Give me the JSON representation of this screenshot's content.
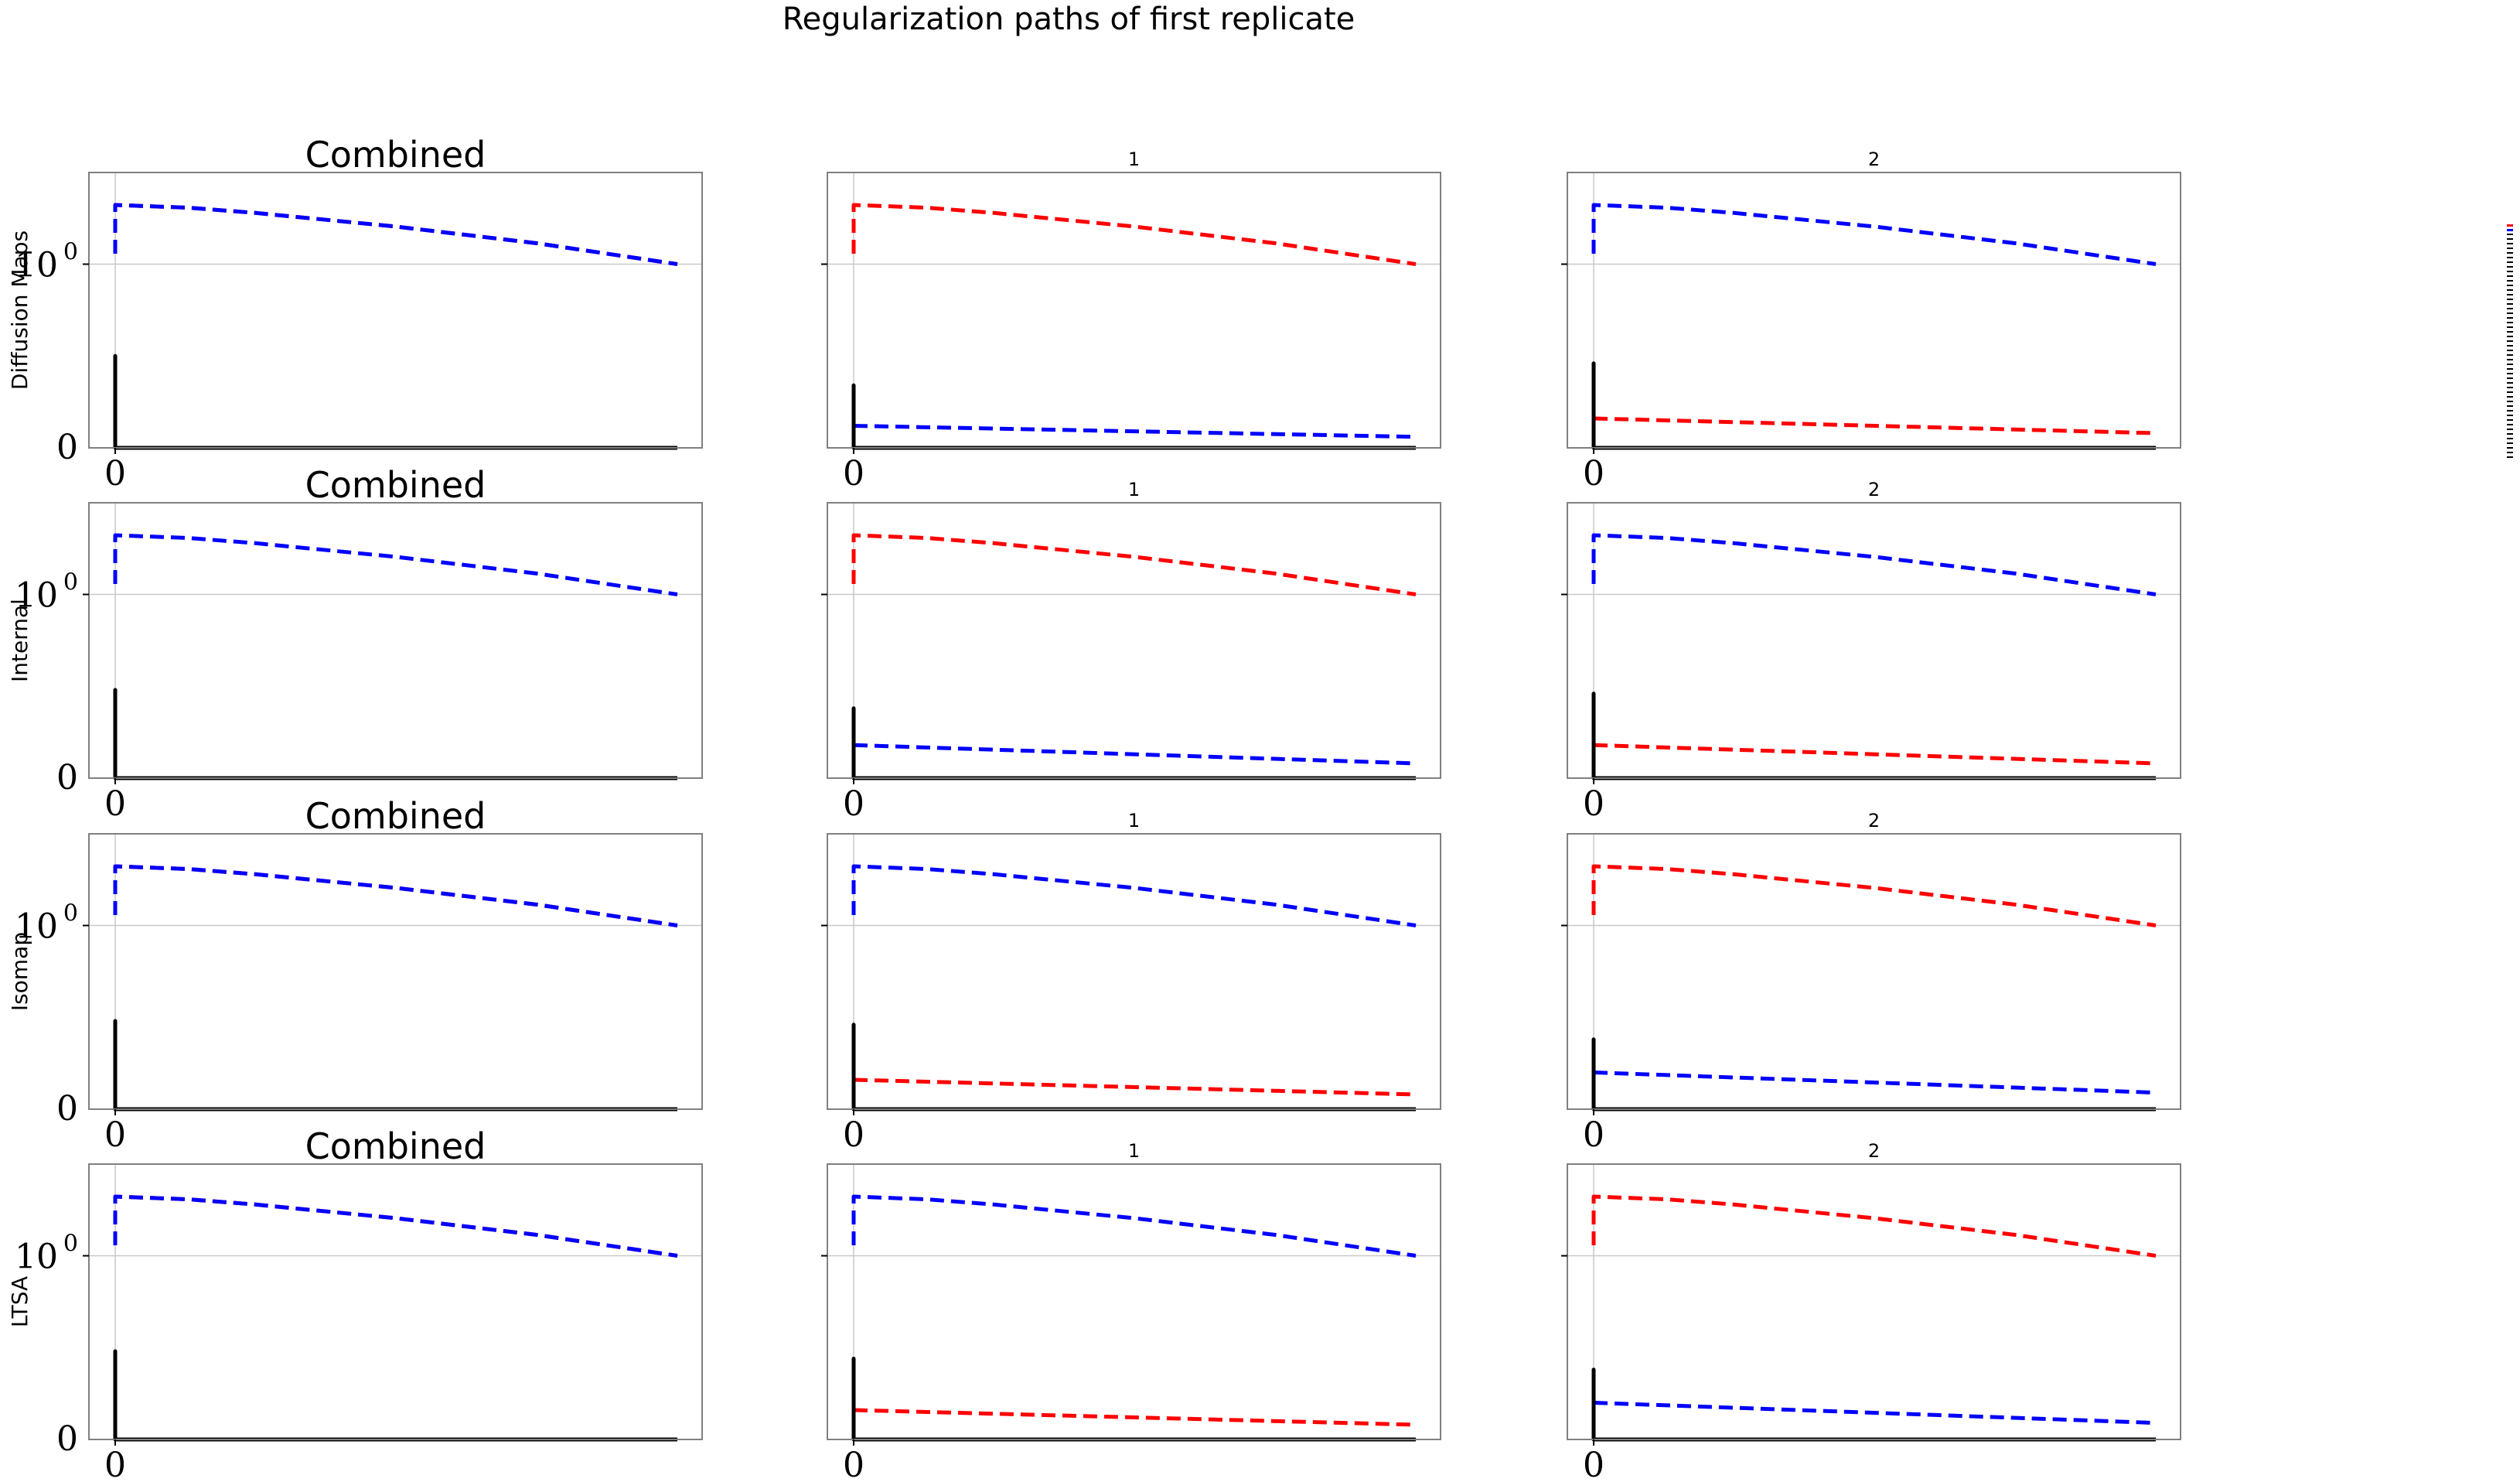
{
  "figure_title": "Regularization paths of first replicate",
  "rows": [
    {
      "label": "Diffusion Maps"
    },
    {
      "label": "Internal"
    },
    {
      "label": "Isomap"
    },
    {
      "label": "LTSA"
    }
  ],
  "columns": [
    {
      "title": "Combined"
    },
    {
      "title": "1"
    },
    {
      "title": "2"
    }
  ],
  "colors": {
    "red": "#ff0000",
    "blue": "#0000ff",
    "black": "#000000",
    "grid": "#c8c8c8",
    "frame": "#808080"
  },
  "chart_data": [
    {
      "type": "line",
      "row": "Diffusion Maps",
      "title": "Combined",
      "ylabel": "Diffusion Maps",
      "xticks": [
        "0"
      ],
      "yticks": [
        "0",
        "10^0"
      ],
      "yscale": "symlog",
      "series": [
        {
          "color": "red",
          "style": "dashed",
          "x": [
            0,
            0,
            0.13,
            0.25,
            0.5,
            0.75,
            1
          ],
          "y": [
            1.14,
            2.1,
            2.03,
            1.9,
            1.6,
            1.3,
            1.0
          ]
        },
        {
          "color": "blue",
          "style": "dashed",
          "x": [
            0,
            0,
            0.13,
            0.25,
            0.5,
            0.75,
            1
          ],
          "y": [
            1.14,
            2.1,
            2.03,
            1.9,
            1.6,
            1.3,
            1.0
          ]
        },
        {
          "color": "black",
          "style": "solid",
          "x": [
            0,
            0,
            0,
            1
          ],
          "y": [
            0,
            0.5,
            0,
            0
          ]
        }
      ]
    },
    {
      "type": "line",
      "row": "Diffusion Maps",
      "title": "1",
      "xticks": [
        "0"
      ],
      "yticks": [],
      "yscale": "symlog",
      "series": [
        {
          "color": "red",
          "style": "dashed",
          "x": [
            0,
            0,
            0.13,
            0.25,
            0.5,
            0.75,
            1
          ],
          "y": [
            1.14,
            2.1,
            2.03,
            1.9,
            1.6,
            1.3,
            1.0
          ]
        },
        {
          "color": "blue",
          "style": "dashed",
          "x": [
            0,
            1
          ],
          "y": [
            0.12,
            0.06
          ]
        },
        {
          "color": "black",
          "style": "solid",
          "x": [
            0,
            0,
            0,
            1
          ],
          "y": [
            0,
            0.34,
            0,
            0
          ]
        }
      ]
    },
    {
      "type": "line",
      "row": "Diffusion Maps",
      "title": "2",
      "xticks": [
        "0"
      ],
      "yticks": [],
      "yscale": "symlog",
      "series": [
        {
          "color": "blue",
          "style": "dashed",
          "x": [
            0,
            0,
            0.13,
            0.25,
            0.5,
            0.75,
            1
          ],
          "y": [
            1.14,
            2.1,
            2.03,
            1.9,
            1.6,
            1.3,
            1.0
          ]
        },
        {
          "color": "red",
          "style": "dashed",
          "x": [
            0,
            1
          ],
          "y": [
            0.16,
            0.08
          ]
        },
        {
          "color": "black",
          "style": "solid",
          "x": [
            0,
            0,
            0,
            1
          ],
          "y": [
            0,
            0.46,
            0,
            0
          ]
        }
      ]
    },
    {
      "type": "line",
      "row": "Internal",
      "title": "Combined",
      "ylabel": "Internal",
      "xticks": [
        "0"
      ],
      "yticks": [
        "0",
        "10^0"
      ],
      "yscale": "symlog",
      "series": [
        {
          "color": "blue",
          "style": "dashed",
          "x": [
            0,
            0,
            0.13,
            0.25,
            0.5,
            0.75,
            1
          ],
          "y": [
            1.14,
            2.1,
            2.03,
            1.9,
            1.6,
            1.3,
            1.0
          ]
        },
        {
          "color": "black",
          "style": "solid",
          "x": [
            0,
            0,
            0,
            1
          ],
          "y": [
            0,
            0.48,
            0,
            0
          ]
        }
      ]
    },
    {
      "type": "line",
      "row": "Internal",
      "title": "1",
      "xticks": [
        "0"
      ],
      "yticks": [],
      "yscale": "symlog",
      "series": [
        {
          "color": "red",
          "style": "dashed",
          "x": [
            0,
            0,
            0.13,
            0.25,
            0.5,
            0.75,
            1
          ],
          "y": [
            1.14,
            2.1,
            2.03,
            1.9,
            1.6,
            1.3,
            1.0
          ]
        },
        {
          "color": "blue",
          "style": "dashed",
          "x": [
            0,
            1
          ],
          "y": [
            0.18,
            0.08
          ]
        },
        {
          "color": "black",
          "style": "solid",
          "x": [
            0,
            0,
            0,
            1
          ],
          "y": [
            0,
            0.38,
            0,
            0
          ]
        }
      ]
    },
    {
      "type": "line",
      "row": "Internal",
      "title": "2",
      "xticks": [
        "0"
      ],
      "yticks": [],
      "yscale": "symlog",
      "series": [
        {
          "color": "blue",
          "style": "dashed",
          "x": [
            0,
            0,
            0.13,
            0.25,
            0.5,
            0.75,
            1
          ],
          "y": [
            1.14,
            2.1,
            2.03,
            1.9,
            1.6,
            1.3,
            1.0
          ]
        },
        {
          "color": "red",
          "style": "dashed",
          "x": [
            0,
            1
          ],
          "y": [
            0.18,
            0.08
          ]
        },
        {
          "color": "black",
          "style": "solid",
          "x": [
            0,
            0,
            0,
            1
          ],
          "y": [
            0,
            0.46,
            0,
            0
          ]
        }
      ]
    },
    {
      "type": "line",
      "row": "Isomap",
      "title": "Combined",
      "ylabel": "Isomap",
      "xticks": [
        "0"
      ],
      "yticks": [
        "0",
        "10^0"
      ],
      "yscale": "symlog",
      "series": [
        {
          "color": "red",
          "style": "dashed",
          "x": [
            0,
            0,
            0.13,
            0.25,
            0.5,
            0.75,
            1
          ],
          "y": [
            1.14,
            2.1,
            2.03,
            1.9,
            1.6,
            1.3,
            1.0
          ]
        },
        {
          "color": "blue",
          "style": "dashed",
          "x": [
            0,
            0,
            0.13,
            0.25,
            0.5,
            0.75,
            1
          ],
          "y": [
            1.14,
            2.1,
            2.03,
            1.9,
            1.6,
            1.3,
            1.0
          ]
        },
        {
          "color": "black",
          "style": "solid",
          "x": [
            0,
            0,
            0,
            1
          ],
          "y": [
            0,
            0.48,
            0,
            0
          ]
        }
      ]
    },
    {
      "type": "line",
      "row": "Isomap",
      "title": "1",
      "xticks": [
        "0"
      ],
      "yticks": [],
      "yscale": "symlog",
      "series": [
        {
          "color": "blue",
          "style": "dashed",
          "x": [
            0,
            0,
            0.13,
            0.25,
            0.5,
            0.75,
            1
          ],
          "y": [
            1.14,
            2.1,
            2.03,
            1.9,
            1.6,
            1.3,
            1.0
          ]
        },
        {
          "color": "red",
          "style": "dashed",
          "x": [
            0,
            1
          ],
          "y": [
            0.16,
            0.08
          ]
        },
        {
          "color": "black",
          "style": "solid",
          "x": [
            0,
            0,
            0,
            1
          ],
          "y": [
            0,
            0.46,
            0,
            0
          ]
        }
      ]
    },
    {
      "type": "line",
      "row": "Isomap",
      "title": "2",
      "xticks": [
        "0"
      ],
      "yticks": [],
      "yscale": "symlog",
      "series": [
        {
          "color": "red",
          "style": "dashed",
          "x": [
            0,
            0,
            0.13,
            0.25,
            0.5,
            0.75,
            1
          ],
          "y": [
            1.14,
            2.1,
            2.03,
            1.9,
            1.6,
            1.3,
            1.0
          ]
        },
        {
          "color": "blue",
          "style": "dashed",
          "x": [
            0,
            1
          ],
          "y": [
            0.2,
            0.09
          ]
        },
        {
          "color": "black",
          "style": "solid",
          "x": [
            0,
            0,
            0,
            1
          ],
          "y": [
            0,
            0.38,
            0,
            0
          ]
        }
      ]
    },
    {
      "type": "line",
      "row": "LTSA",
      "title": "Combined",
      "ylabel": "LTSA",
      "xticks": [
        "0"
      ],
      "yticks": [
        "0",
        "10^0"
      ],
      "yscale": "symlog",
      "series": [
        {
          "color": "red",
          "style": "dashed",
          "x": [
            0,
            0,
            0.13,
            0.25,
            0.5,
            0.75,
            1
          ],
          "y": [
            1.14,
            2.1,
            2.03,
            1.9,
            1.6,
            1.3,
            1.0
          ]
        },
        {
          "color": "blue",
          "style": "dashed",
          "x": [
            0,
            0,
            0.13,
            0.25,
            0.5,
            0.75,
            1
          ],
          "y": [
            1.14,
            2.1,
            2.03,
            1.9,
            1.6,
            1.3,
            1.0
          ]
        },
        {
          "color": "black",
          "style": "solid",
          "x": [
            0,
            0,
            0,
            1
          ],
          "y": [
            0,
            0.48,
            0,
            0
          ]
        }
      ]
    },
    {
      "type": "line",
      "row": "LTSA",
      "title": "1",
      "xticks": [
        "0"
      ],
      "yticks": [],
      "yscale": "symlog",
      "series": [
        {
          "color": "blue",
          "style": "dashed",
          "x": [
            0,
            0,
            0.13,
            0.25,
            0.5,
            0.75,
            1
          ],
          "y": [
            1.14,
            2.1,
            2.03,
            1.9,
            1.6,
            1.3,
            1.0
          ]
        },
        {
          "color": "red",
          "style": "dashed",
          "x": [
            0,
            1
          ],
          "y": [
            0.16,
            0.08
          ]
        },
        {
          "color": "black",
          "style": "solid",
          "x": [
            0,
            0,
            0,
            1
          ],
          "y": [
            0,
            0.44,
            0,
            0
          ]
        }
      ]
    },
    {
      "type": "line",
      "row": "LTSA",
      "title": "2",
      "xticks": [
        "0"
      ],
      "yticks": [],
      "yscale": "symlog",
      "series": [
        {
          "color": "red",
          "style": "dashed",
          "x": [
            0,
            0,
            0.13,
            0.25,
            0.5,
            0.75,
            1
          ],
          "y": [
            1.14,
            2.1,
            2.03,
            1.9,
            1.6,
            1.3,
            1.0
          ]
        },
        {
          "color": "blue",
          "style": "dashed",
          "x": [
            0,
            1
          ],
          "y": [
            0.2,
            0.09
          ]
        },
        {
          "color": "black",
          "style": "solid",
          "x": [
            0,
            0,
            0,
            1
          ],
          "y": [
            0,
            0.38,
            0,
            0
          ]
        }
      ]
    }
  ]
}
